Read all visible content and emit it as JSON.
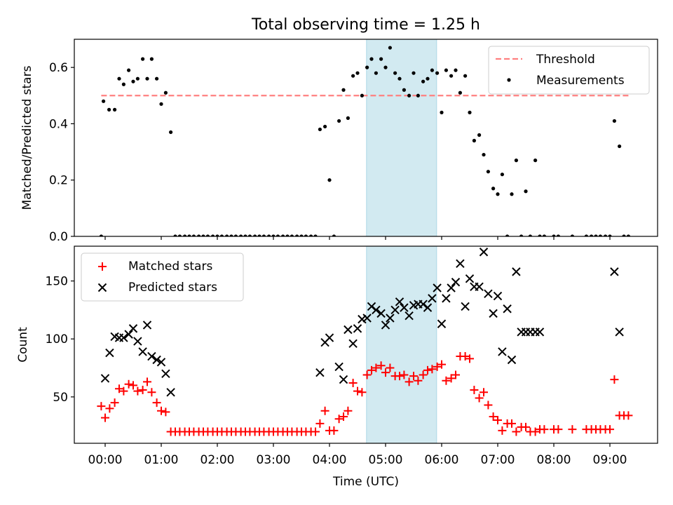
{
  "figure": {
    "title": "Total observing time = 1.25 h"
  },
  "chart_data": [
    {
      "type": "line",
      "title": "Total observing time = 1.25 h",
      "xlabel": "",
      "ylabel": "Matched/Predicted stars",
      "x_unit": "hours (UTC)",
      "xlim": [
        -0.55,
        9.85
      ],
      "ylim": [
        0,
        0.7
      ],
      "yticks": [
        0.0,
        0.2,
        0.4,
        0.6
      ],
      "ytick_labels": [
        "0.0",
        "0.2",
        "0.4",
        "0.6"
      ],
      "shaded_interval": {
        "x": [
          4.66,
          5.91
        ],
        "color": "#add8e6"
      },
      "legend": {
        "location": "upper right",
        "entries": [
          "Threshold",
          "Measurements"
        ]
      },
      "series": [
        {
          "name": "Threshold",
          "style": "dashed",
          "color": "#ff8080",
          "x": [
            -0.07,
            9.33
          ],
          "y": [
            0.5,
            0.5
          ]
        },
        {
          "name": "Measurements",
          "style": "scatter",
          "color": "#000000",
          "x": [
            -0.07,
            -0.03,
            0.07,
            0.17,
            0.25,
            0.33,
            0.42,
            0.5,
            0.58,
            0.67,
            0.75,
            0.83,
            0.92,
            1.0,
            1.08,
            1.17,
            1.25,
            1.33,
            1.42,
            1.5,
            1.58,
            1.67,
            1.75,
            1.83,
            1.92,
            2.0,
            2.08,
            2.17,
            2.25,
            2.33,
            2.42,
            2.5,
            2.58,
            2.67,
            2.75,
            2.83,
            2.92,
            3.0,
            3.08,
            3.17,
            3.25,
            3.33,
            3.42,
            3.5,
            3.58,
            3.67,
            3.75,
            3.83,
            3.92,
            4.0,
            4.08,
            4.17,
            4.25,
            4.33,
            4.42,
            4.5,
            4.58,
            4.67,
            4.75,
            4.83,
            4.92,
            5.0,
            5.08,
            5.17,
            5.25,
            5.33,
            5.42,
            5.5,
            5.58,
            5.67,
            5.75,
            5.83,
            5.92,
            6.0,
            6.08,
            6.17,
            6.25,
            6.33,
            6.42,
            6.5,
            6.58,
            6.67,
            6.75,
            6.83,
            6.92,
            7.0,
            7.08,
            7.17,
            7.25,
            7.33,
            7.42,
            7.5,
            7.58,
            7.67,
            7.75,
            7.83,
            8.0,
            8.08,
            8.33,
            8.58,
            8.67,
            8.75,
            8.83,
            8.92,
            9.0,
            9.08,
            9.17,
            9.25,
            9.33
          ],
          "y": [
            0.0,
            0.48,
            0.45,
            0.45,
            0.56,
            0.54,
            0.59,
            0.55,
            0.56,
            0.63,
            0.56,
            0.63,
            0.56,
            0.47,
            0.51,
            0.37,
            0.0,
            0.0,
            0.0,
            0.0,
            0.0,
            0.0,
            0.0,
            0.0,
            0.0,
            0.0,
            0.0,
            0.0,
            0.0,
            0.0,
            0.0,
            0.0,
            0.0,
            0.0,
            0.0,
            0.0,
            0.0,
            0.0,
            0.0,
            0.0,
            0.0,
            0.0,
            0.0,
            0.0,
            0.0,
            0.0,
            0.0,
            0.38,
            0.39,
            0.2,
            0.0,
            0.41,
            0.52,
            0.42,
            0.57,
            0.58,
            0.5,
            0.6,
            0.63,
            0.58,
            0.63,
            0.6,
            0.67,
            0.58,
            0.56,
            0.52,
            0.5,
            0.58,
            0.5,
            0.55,
            0.56,
            0.59,
            0.58,
            0.44,
            0.59,
            0.57,
            0.59,
            0.51,
            0.57,
            0.44,
            0.34,
            0.36,
            0.29,
            0.23,
            0.17,
            0.15,
            0.22,
            0.0,
            0.15,
            0.27,
            0.0,
            0.16,
            0.0,
            0.27,
            0.0,
            0.0,
            0.0,
            0.0,
            0.0,
            0.0,
            0.0,
            0.0,
            0.0,
            0.0,
            0.0,
            0.41,
            0.32,
            0.0,
            0.0
          ]
        }
      ]
    },
    {
      "type": "scatter",
      "xlabel": "Time (UTC)",
      "ylabel": "Count",
      "x_unit": "hours (UTC)",
      "xlim": [
        -0.55,
        9.85
      ],
      "ylim": [
        10,
        180
      ],
      "xticks": [
        0,
        1,
        2,
        3,
        4,
        5,
        6,
        7,
        8,
        9
      ],
      "xtick_labels": [
        "00:00",
        "01:00",
        "02:00",
        "03:00",
        "04:00",
        "05:00",
        "06:00",
        "07:00",
        "08:00",
        "09:00"
      ],
      "yticks": [
        50,
        100,
        150
      ],
      "ytick_labels": [
        "50",
        "100",
        "150"
      ],
      "shaded_interval": {
        "x": [
          4.66,
          5.91
        ],
        "color": "#add8e6"
      },
      "legend": {
        "location": "upper left",
        "entries": [
          "Matched stars",
          "Predicted stars"
        ]
      },
      "series": [
        {
          "name": "Matched stars",
          "marker": "plus",
          "color": "#ff0000",
          "x": [
            -0.07,
            0.0,
            0.08,
            0.17,
            0.25,
            0.33,
            0.42,
            0.5,
            0.58,
            0.67,
            0.75,
            0.83,
            0.92,
            1.0,
            1.08,
            1.17,
            1.25,
            1.33,
            1.42,
            1.5,
            1.58,
            1.67,
            1.75,
            1.83,
            1.92,
            2.0,
            2.08,
            2.17,
            2.25,
            2.33,
            2.42,
            2.5,
            2.58,
            2.67,
            2.75,
            2.83,
            2.92,
            3.0,
            3.08,
            3.17,
            3.25,
            3.33,
            3.42,
            3.5,
            3.58,
            3.67,
            3.75,
            3.83,
            3.92,
            4.0,
            4.08,
            4.17,
            4.25,
            4.33,
            4.42,
            4.5,
            4.58,
            4.67,
            4.75,
            4.83,
            4.92,
            5.0,
            5.08,
            5.17,
            5.25,
            5.33,
            5.42,
            5.5,
            5.58,
            5.67,
            5.75,
            5.83,
            5.92,
            6.0,
            6.08,
            6.17,
            6.25,
            6.33,
            6.42,
            6.5,
            6.58,
            6.67,
            6.75,
            6.83,
            6.92,
            7.0,
            7.08,
            7.17,
            7.25,
            7.33,
            7.42,
            7.5,
            7.58,
            7.67,
            7.75,
            7.83,
            8.0,
            8.08,
            8.33,
            8.58,
            8.67,
            8.75,
            8.83,
            8.92,
            9.0,
            9.08,
            9.17,
            9.25,
            9.33
          ],
          "y": [
            42,
            32,
            40,
            45,
            57,
            55,
            61,
            60,
            55,
            56,
            63,
            54,
            45,
            38,
            37,
            20,
            20,
            20,
            20,
            20,
            20,
            20,
            20,
            20,
            20,
            20,
            20,
            20,
            20,
            20,
            20,
            20,
            20,
            20,
            20,
            20,
            20,
            20,
            20,
            20,
            20,
            20,
            20,
            20,
            20,
            20,
            20,
            27,
            38,
            21,
            21,
            31,
            33,
            38,
            62,
            55,
            54,
            69,
            73,
            75,
            77,
            71,
            75,
            68,
            68,
            69,
            63,
            68,
            64,
            69,
            73,
            74,
            76,
            78,
            64,
            66,
            69,
            85,
            85,
            83,
            56,
            49,
            54,
            43,
            33,
            30,
            21,
            27,
            27,
            20,
            24,
            24,
            20,
            20,
            22,
            22,
            22,
            22,
            22,
            22,
            22,
            22,
            22,
            22,
            22,
            65,
            34,
            34,
            34
          ]
        },
        {
          "name": "Predicted stars",
          "marker": "x",
          "color": "#000000",
          "x": [
            0.0,
            0.08,
            0.17,
            0.25,
            0.33,
            0.42,
            0.5,
            0.58,
            0.67,
            0.75,
            0.83,
            0.92,
            1.0,
            1.08,
            1.17,
            3.83,
            3.92,
            4.0,
            4.17,
            4.25,
            4.33,
            4.42,
            4.5,
            4.58,
            4.67,
            4.75,
            4.83,
            4.92,
            5.0,
            5.08,
            5.17,
            5.25,
            5.33,
            5.42,
            5.5,
            5.58,
            5.67,
            5.75,
            5.83,
            5.92,
            6.0,
            6.08,
            6.17,
            6.25,
            6.33,
            6.42,
            6.5,
            6.58,
            6.67,
            6.75,
            6.83,
            6.92,
            7.0,
            7.08,
            7.17,
            7.25,
            7.33,
            7.42,
            7.5,
            7.58,
            7.67,
            7.75,
            9.08,
            9.17
          ],
          "y": [
            66,
            88,
            102,
            101,
            101,
            104,
            109,
            98,
            89,
            112,
            85,
            82,
            80,
            70,
            54,
            71,
            97,
            101,
            76,
            65,
            108,
            96,
            109,
            117,
            118,
            128,
            125,
            122,
            112,
            118,
            125,
            132,
            127,
            120,
            129,
            130,
            130,
            127,
            135,
            144,
            113,
            135,
            144,
            149,
            165,
            128,
            152,
            145,
            145,
            175,
            139,
            122,
            137,
            89,
            126,
            82,
            158,
            106,
            106,
            106,
            106,
            106,
            158,
            106
          ]
        }
      ]
    }
  ]
}
